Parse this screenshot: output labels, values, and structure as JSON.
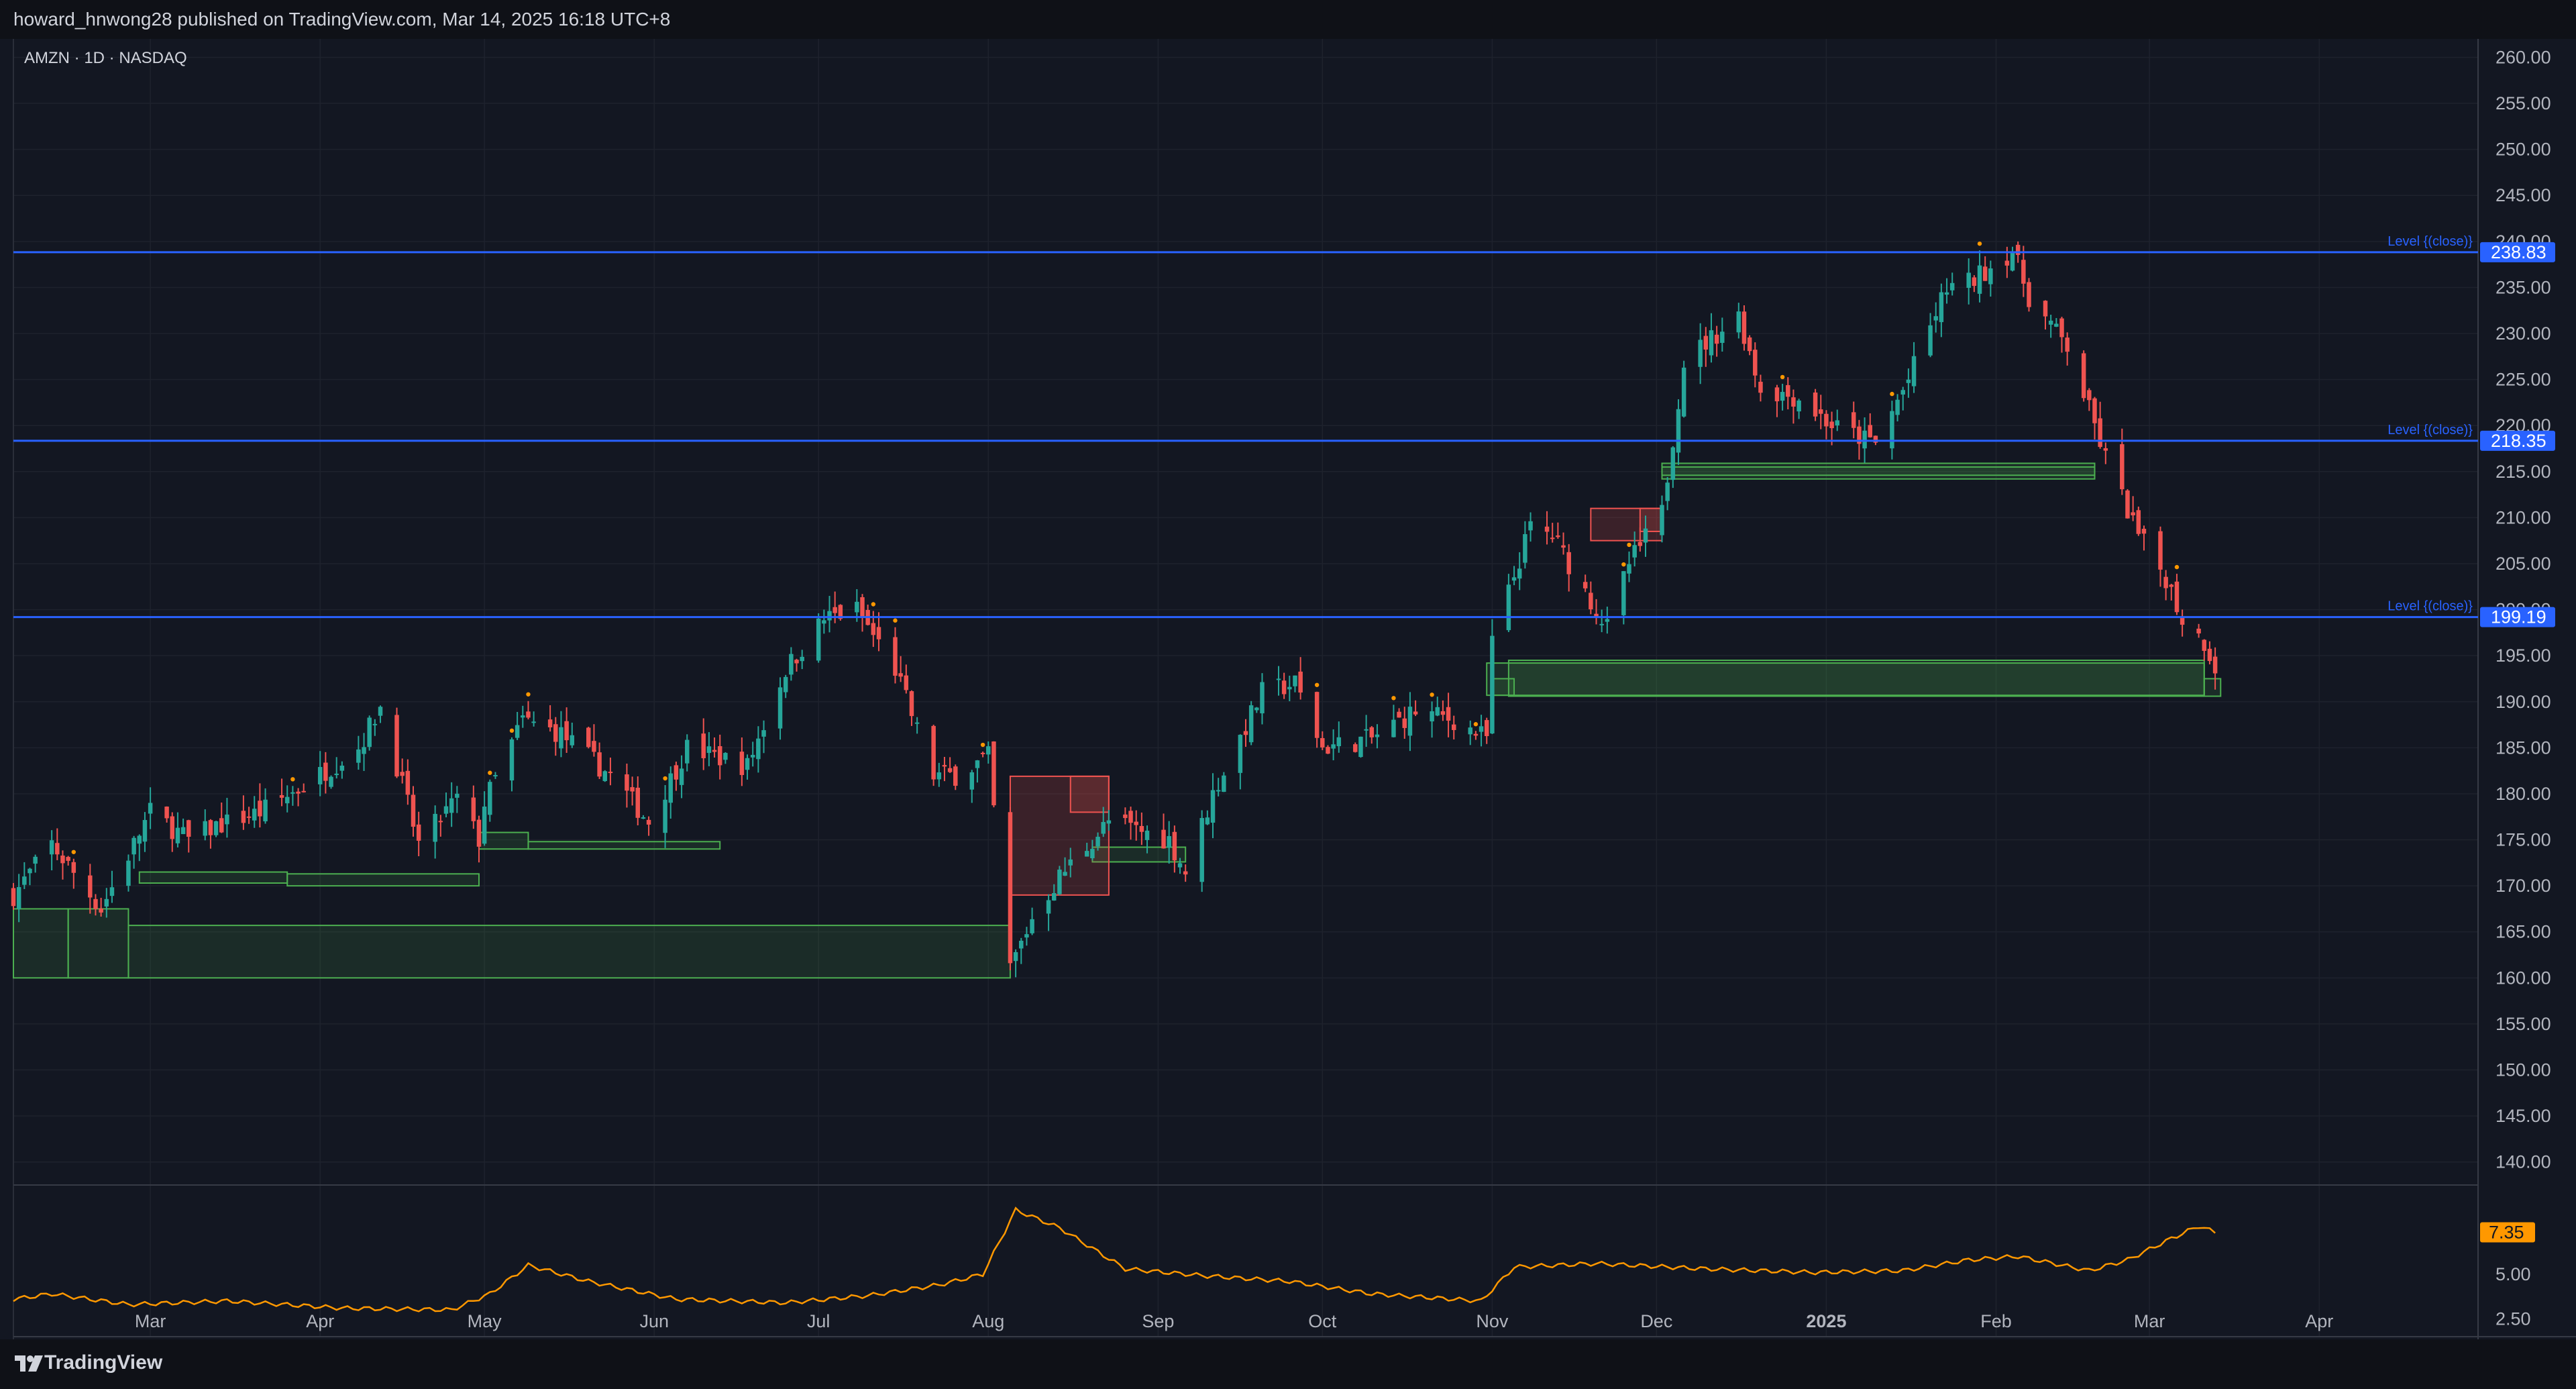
{
  "header": {
    "published_text": "howard_hnwong28 published on TradingView.com, Mar 14, 2025 16:18 UTC+8"
  },
  "footer": {
    "brand": "TradingView"
  },
  "colors": {
    "background": "#131722",
    "up": "#26a69a",
    "down": "#ef5350",
    "level_line": "#2962ff",
    "demand_zone": "#4caf50",
    "supply_zone": "#ef5350",
    "indicator": "#ff9800"
  },
  "chart_data": {
    "type": "candlestick",
    "symbol_label": "AMZN · 1D · NASDAQ",
    "price_axis": {
      "ylim": [
        137.5,
        262
      ],
      "ticks": [
        140,
        145,
        150,
        155,
        160,
        165,
        170,
        175,
        180,
        185,
        190,
        195,
        200,
        205,
        210,
        215,
        220,
        225,
        230,
        235,
        240,
        245,
        250,
        255,
        260
      ],
      "tick_labels": [
        "140.00",
        "145.00",
        "150.00",
        "155.00",
        "160.00",
        "165.00",
        "170.00",
        "175.00",
        "180.00",
        "185.00",
        "190.00",
        "195.00",
        "200.00",
        "205.00",
        "210.00",
        "215.00",
        "220.00",
        "225.00",
        "230.00",
        "235.00",
        "240.00",
        "245.00",
        "250.00",
        "255.00",
        "260.00"
      ]
    },
    "time_axis": {
      "labels": [
        "Mar",
        "Apr",
        "May",
        "Jun",
        "Jul",
        "Aug",
        "Sep",
        "Oct",
        "Nov",
        "Dec",
        "2025",
        "Feb",
        "Mar",
        "Apr"
      ],
      "start_date": "2024-02-05",
      "end_date": "2025-04-30"
    },
    "levels": [
      {
        "label": "Level {(close)}",
        "value": 238.83,
        "value_label": "238.83"
      },
      {
        "label": "Level {(close)}",
        "value": 218.35,
        "value_label": "218.35"
      },
      {
        "label": "Level {(close)}",
        "value": 199.19,
        "value_label": "199.19"
      }
    ],
    "demand_zones": [
      {
        "start": "2024-02-05",
        "end": "2024-02-15",
        "top": 167.5,
        "bottom": 160
      },
      {
        "start": "2024-02-15",
        "end": "2024-02-26",
        "top": 167.5,
        "bottom": 160
      },
      {
        "start": "2024-02-26",
        "end": "2024-08-05",
        "top": 165.7,
        "bottom": 160
      },
      {
        "start": "2024-02-28",
        "end": "2024-03-26",
        "top": 171.5,
        "bottom": 170.3
      },
      {
        "start": "2024-03-26",
        "end": "2024-04-30",
        "top": 171.3,
        "bottom": 170.0
      },
      {
        "start": "2024-04-30",
        "end": "2024-05-09",
        "top": 175.8,
        "bottom": 174.0
      },
      {
        "start": "2024-05-09",
        "end": "2024-06-13",
        "top": 174.8,
        "bottom": 174.0
      },
      {
        "start": "2024-08-20",
        "end": "2024-09-06",
        "top": 174.2,
        "bottom": 172.6
      },
      {
        "start": "2024-10-31",
        "end": "2025-03-11",
        "top": 194.2,
        "bottom": 190.7
      },
      {
        "start": "2024-11-04",
        "end": "2025-03-11",
        "top": 194.5,
        "bottom": 190.6
      },
      {
        "start": "2024-11-01",
        "end": "2024-11-05",
        "top": 192.5,
        "bottom": 190.7
      },
      {
        "start": "2025-03-11",
        "end": "2025-03-14",
        "top": 192.5,
        "bottom": 190.6
      },
      {
        "start": "2024-12-02",
        "end": "2025-02-19",
        "top": 215.9,
        "bottom": 214.2
      },
      {
        "start": "2024-12-02",
        "end": "2025-02-19",
        "top": 215.5,
        "bottom": 214.6
      }
    ],
    "supply_zones": [
      {
        "start": "2024-08-05",
        "end": "2024-08-23",
        "top": 181.9,
        "bottom": 169.0
      },
      {
        "start": "2024-08-16",
        "end": "2024-08-23",
        "top": 181.9,
        "bottom": 178.0
      },
      {
        "start": "2024-11-19",
        "end": "2024-12-02",
        "top": 211.0,
        "bottom": 207.5
      },
      {
        "start": "2024-11-28",
        "end": "2024-12-02",
        "top": 211.0,
        "bottom": 208.5
      }
    ],
    "anchors": [
      [
        "2024-02-05",
        169.0
      ],
      [
        "2024-02-12",
        174.5
      ],
      [
        "2024-02-21",
        167.5
      ],
      [
        "2024-03-01",
        178.0
      ],
      [
        "2024-03-08",
        175.0
      ],
      [
        "2024-03-13",
        176.5
      ],
      [
        "2024-03-21",
        178.0
      ],
      [
        "2024-03-28",
        180.5
      ],
      [
        "2024-04-08",
        185.0
      ],
      [
        "2024-04-12",
        189.5
      ],
      [
        "2024-04-19",
        174.5
      ],
      [
        "2024-04-26",
        179.5
      ],
      [
        "2024-04-30",
        175.0
      ],
      [
        "2024-05-01",
        179.0
      ],
      [
        "2024-05-08",
        188.0
      ],
      [
        "2024-05-15",
        186.5
      ],
      [
        "2024-05-24",
        182.0
      ],
      [
        "2024-05-31",
        177.0
      ],
      [
        "2024-06-07",
        185.0
      ],
      [
        "2024-06-18",
        183.0
      ],
      [
        "2024-06-25",
        193.5
      ],
      [
        "2024-07-02",
        199.0
      ],
      [
        "2024-07-08",
        200.0
      ],
      [
        "2024-07-15",
        193.5
      ],
      [
        "2024-07-22",
        182.0
      ],
      [
        "2024-07-26",
        182.0
      ],
      [
        "2024-08-01",
        184.0
      ],
      [
        "2024-08-05",
        161.0
      ],
      [
        "2024-08-09",
        166.5
      ],
      [
        "2024-08-14",
        171.0
      ],
      [
        "2024-08-23",
        177.0
      ],
      [
        "2024-09-03",
        175.0
      ],
      [
        "2024-09-06",
        171.5
      ],
      [
        "2024-09-11",
        180.0
      ],
      [
        "2024-09-20",
        191.0
      ],
      [
        "2024-09-26",
        192.0
      ],
      [
        "2024-10-01",
        185.0
      ],
      [
        "2024-10-10",
        186.0
      ],
      [
        "2024-10-18",
        189.0
      ],
      [
        "2024-10-25",
        188.0
      ],
      [
        "2024-10-31",
        186.0
      ],
      [
        "2024-11-01",
        196.5
      ],
      [
        "2024-11-08",
        209.0
      ],
      [
        "2024-11-12",
        208.0
      ],
      [
        "2024-11-19",
        201.0
      ],
      [
        "2024-11-22",
        198.0
      ],
      [
        "2024-11-26",
        205.0
      ],
      [
        "2024-12-02",
        210.5
      ],
      [
        "2024-12-06",
        227.0
      ],
      [
        "2024-12-16",
        232.0
      ],
      [
        "2024-12-20",
        224.0
      ],
      [
        "2024-12-27",
        223.0
      ],
      [
        "2025-01-02",
        220.0
      ],
      [
        "2025-01-10",
        218.0
      ],
      [
        "2025-01-16",
        225.0
      ],
      [
        "2025-01-23",
        235.0
      ],
      [
        "2025-01-27",
        235.5
      ],
      [
        "2025-02-04",
        239.0
      ],
      [
        "2025-02-07",
        234.0
      ],
      [
        "2025-02-14",
        228.5
      ],
      [
        "2025-02-21",
        216.5
      ],
      [
        "2025-02-27",
        208.0
      ],
      [
        "2025-03-04",
        203.5
      ],
      [
        "2025-03-07",
        199.0
      ],
      [
        "2025-03-11",
        196.5
      ],
      [
        "2025-03-13",
        193.9
      ]
    ],
    "indicator": {
      "last_value": 7.35,
      "last_label": "7.35",
      "ylim": [
        1.5,
        10.0
      ],
      "ticks": [
        2.5,
        5.0
      ],
      "tick_labels": [
        "2.50",
        "5.00"
      ],
      "points": [
        [
          "2024-02-05",
          3.6
        ],
        [
          "2024-02-12",
          3.9
        ],
        [
          "2024-02-26",
          3.3
        ],
        [
          "2024-03-15",
          3.5
        ],
        [
          "2024-04-05",
          3.1
        ],
        [
          "2024-04-25",
          3.0
        ],
        [
          "2024-05-02",
          3.9
        ],
        [
          "2024-05-09",
          5.5
        ],
        [
          "2024-05-20",
          4.6
        ],
        [
          "2024-06-05",
          3.6
        ],
        [
          "2024-06-25",
          3.4
        ],
        [
          "2024-07-10",
          3.8
        ],
        [
          "2024-07-23",
          4.4
        ],
        [
          "2024-07-31",
          5.0
        ],
        [
          "2024-08-06",
          8.6
        ],
        [
          "2024-08-14",
          7.6
        ],
        [
          "2024-08-26",
          5.3
        ],
        [
          "2024-09-10",
          4.9
        ],
        [
          "2024-09-25",
          4.6
        ],
        [
          "2024-10-10",
          3.9
        ],
        [
          "2024-10-30",
          3.5
        ],
        [
          "2024-11-05",
          5.4
        ],
        [
          "2024-11-20",
          5.6
        ],
        [
          "2024-12-10",
          5.3
        ],
        [
          "2024-12-30",
          5.1
        ],
        [
          "2025-01-15",
          5.2
        ],
        [
          "2025-01-27",
          5.8
        ],
        [
          "2025-02-05",
          6.0
        ],
        [
          "2025-02-18",
          5.2
        ],
        [
          "2025-02-25",
          5.8
        ],
        [
          "2025-03-05",
          7.0
        ],
        [
          "2025-03-10",
          7.7
        ],
        [
          "2025-03-13",
          7.35
        ]
      ]
    }
  }
}
